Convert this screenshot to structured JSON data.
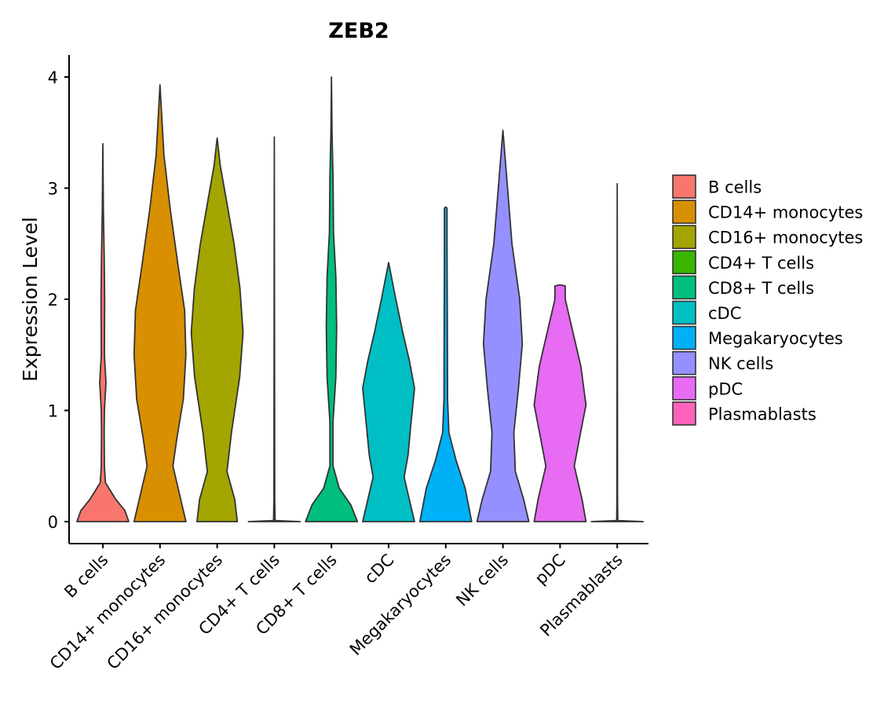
{
  "chart_data": {
    "type": "violin",
    "title": "ZEB2",
    "xlabel": "",
    "ylabel": "Expression Level",
    "ylim": [
      0,
      4.2
    ],
    "yticks": [
      0,
      1,
      2,
      3,
      4
    ],
    "grid": false,
    "legend_position": "right",
    "categories": [
      "B cells",
      "CD14+ monocytes",
      "CD16+ monocytes",
      "CD4+ T cells",
      "CD8+ T cells",
      "cDC",
      "Megakaryocytes",
      "NK cells",
      "pDC",
      "Plasmablasts"
    ],
    "colors": [
      "#F8766D",
      "#D89000",
      "#A3A500",
      "#39B600",
      "#00BF7D",
      "#00BFC4",
      "#00B0F6",
      "#9590FF",
      "#E76BF3",
      "#FF62BC"
    ],
    "series": [
      {
        "name": "B cells",
        "max": 3.4,
        "density": [
          [
            0,
            1.0
          ],
          [
            0.1,
            0.85
          ],
          [
            0.2,
            0.5
          ],
          [
            0.35,
            0.1
          ],
          [
            0.5,
            0.06
          ],
          [
            0.8,
            0.05
          ],
          [
            1.0,
            0.06
          ],
          [
            1.25,
            0.12
          ],
          [
            1.5,
            0.06
          ],
          [
            2.0,
            0.07
          ],
          [
            2.4,
            0.05
          ],
          [
            2.8,
            0.02
          ],
          [
            3.4,
            0.0
          ]
        ]
      },
      {
        "name": "CD14+ monocytes",
        "max": 3.93,
        "density": [
          [
            0,
            1.0
          ],
          [
            0.2,
            0.8
          ],
          [
            0.5,
            0.5
          ],
          [
            0.75,
            0.65
          ],
          [
            1.1,
            0.9
          ],
          [
            1.5,
            1.0
          ],
          [
            1.9,
            0.95
          ],
          [
            2.3,
            0.7
          ],
          [
            2.8,
            0.4
          ],
          [
            3.3,
            0.15
          ],
          [
            3.93,
            0.0
          ]
        ]
      },
      {
        "name": "CD16+ monocytes",
        "max": 3.45,
        "density": [
          [
            0,
            0.78
          ],
          [
            0.2,
            0.68
          ],
          [
            0.45,
            0.38
          ],
          [
            0.8,
            0.55
          ],
          [
            1.3,
            0.87
          ],
          [
            1.7,
            1.0
          ],
          [
            2.1,
            0.88
          ],
          [
            2.5,
            0.65
          ],
          [
            2.9,
            0.35
          ],
          [
            3.2,
            0.12
          ],
          [
            3.45,
            0.0
          ]
        ]
      },
      {
        "name": "CD4+ T cells",
        "max": 3.46,
        "density": [
          [
            0,
            1.0
          ],
          [
            0.01,
            0.03
          ],
          [
            0.2,
            0.015
          ],
          [
            3.46,
            0.0
          ]
        ]
      },
      {
        "name": "CD8+ T cells",
        "max": 4.0,
        "density": [
          [
            0,
            1.0
          ],
          [
            0.15,
            0.75
          ],
          [
            0.3,
            0.3
          ],
          [
            0.5,
            0.06
          ],
          [
            0.9,
            0.06
          ],
          [
            1.3,
            0.17
          ],
          [
            1.75,
            0.2
          ],
          [
            2.2,
            0.17
          ],
          [
            2.6,
            0.08
          ],
          [
            3.1,
            0.06
          ],
          [
            3.5,
            0.02
          ],
          [
            4.0,
            0.0
          ]
        ]
      },
      {
        "name": "cDC",
        "max": 2.33,
        "density": [
          [
            0,
            1.0
          ],
          [
            0.15,
            0.85
          ],
          [
            0.4,
            0.6
          ],
          [
            0.6,
            0.75
          ],
          [
            0.85,
            0.85
          ],
          [
            1.2,
            1.0
          ],
          [
            1.45,
            0.8
          ],
          [
            1.7,
            0.55
          ],
          [
            2.0,
            0.28
          ],
          [
            2.33,
            0.0
          ]
        ]
      },
      {
        "name": "Megakaryocytes",
        "max": 2.83,
        "density": [
          [
            0,
            1.0
          ],
          [
            0.3,
            0.75
          ],
          [
            0.55,
            0.4
          ],
          [
            0.8,
            0.12
          ],
          [
            1.1,
            0.07
          ],
          [
            1.8,
            0.06
          ],
          [
            2.5,
            0.05
          ],
          [
            2.82,
            0.05
          ],
          [
            2.83,
            0.0
          ]
        ]
      },
      {
        "name": "NK cells",
        "max": 3.52,
        "density": [
          [
            0,
            1.0
          ],
          [
            0.2,
            0.8
          ],
          [
            0.45,
            0.48
          ],
          [
            0.8,
            0.42
          ],
          [
            1.2,
            0.6
          ],
          [
            1.6,
            0.75
          ],
          [
            2.0,
            0.65
          ],
          [
            2.5,
            0.35
          ],
          [
            3.0,
            0.18
          ],
          [
            3.52,
            0.0
          ]
        ]
      },
      {
        "name": "pDC",
        "max": 2.13,
        "density": [
          [
            0,
            1.0
          ],
          [
            0.2,
            0.85
          ],
          [
            0.5,
            0.55
          ],
          [
            0.75,
            0.75
          ],
          [
            1.05,
            1.0
          ],
          [
            1.4,
            0.8
          ],
          [
            1.7,
            0.5
          ],
          [
            2.0,
            0.2
          ],
          [
            2.12,
            0.2
          ],
          [
            2.13,
            0.0
          ]
        ]
      },
      {
        "name": "Plasmablasts",
        "max": 3.04,
        "density": [
          [
            0,
            1.0
          ],
          [
            0.01,
            0.02
          ],
          [
            0.2,
            0.012
          ],
          [
            3.04,
            0.0
          ]
        ]
      }
    ]
  }
}
